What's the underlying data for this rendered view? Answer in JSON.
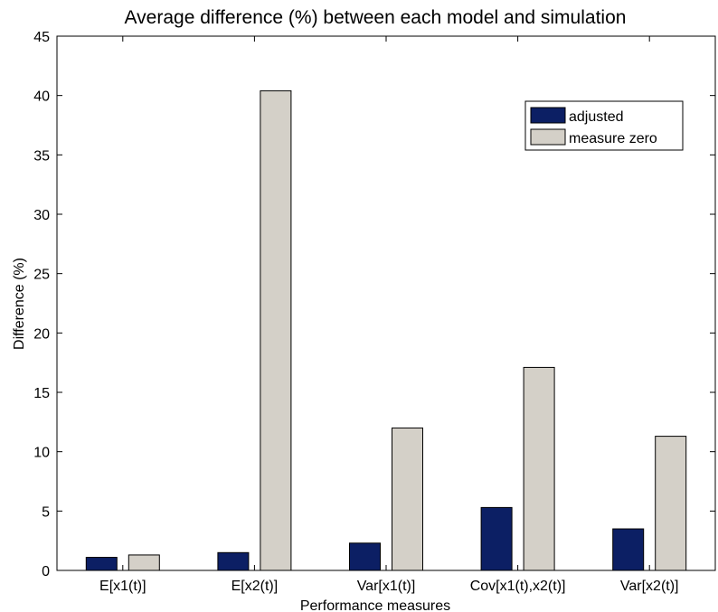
{
  "chart_data": {
    "type": "bar",
    "title": "Average difference (%) between each model and simulation",
    "xlabel": "Performance measures",
    "ylabel": "Difference (%)",
    "ylim": [
      0,
      45
    ],
    "yticks": [
      0,
      5,
      10,
      15,
      20,
      25,
      30,
      35,
      40,
      45
    ],
    "categories": [
      "E[x1(t)]",
      "E[x2(t)]",
      "Var[x1(t)]",
      "Cov[x1(t),x2(t)]",
      "Var[x2(t)]"
    ],
    "series": [
      {
        "name": "adjusted",
        "color": "#0c1f64",
        "values": [
          1.1,
          1.5,
          2.3,
          5.3,
          3.5
        ]
      },
      {
        "name": "measure zero",
        "color": "#d4d0c8",
        "values": [
          1.3,
          40.4,
          12.0,
          17.1,
          11.3
        ]
      }
    ],
    "legend_position": "top-right",
    "grid": false
  }
}
